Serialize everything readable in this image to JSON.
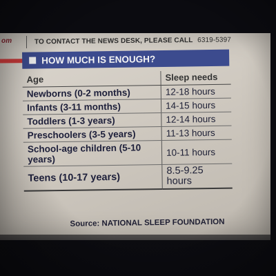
{
  "header_strip": {
    "left_fragment": "om",
    "text": "TO CONTACT THE NEWS DESK, PLEASE CALL",
    "phone": "6319-5397"
  },
  "panel": {
    "title": "HOW MUCH IS ENOUGH?",
    "columns": [
      "Age",
      "Sleep needs"
    ],
    "rows": [
      {
        "age": "Newborns (0-2 months)",
        "sleep": "12-18 hours"
      },
      {
        "age": "Infants (3-11 months)",
        "sleep": "14-15 hours"
      },
      {
        "age": "Toddlers (1-3 years)",
        "sleep": "12-14 hours"
      },
      {
        "age": "Preschoolers (3-5 years)",
        "sleep": "11-13 hours"
      },
      {
        "age": "School-age children (5-10 years)",
        "sleep": "10-11 hours"
      },
      {
        "age": "Teens (10-17 years)",
        "sleep": "8.5-9.25 hours"
      }
    ],
    "source": "Source: NATIONAL SLEEP FOUNDATION"
  },
  "colors": {
    "header_bar": "#3c4b8e",
    "red_rule": "#c83a3a",
    "paper": "#d6d1c9"
  }
}
